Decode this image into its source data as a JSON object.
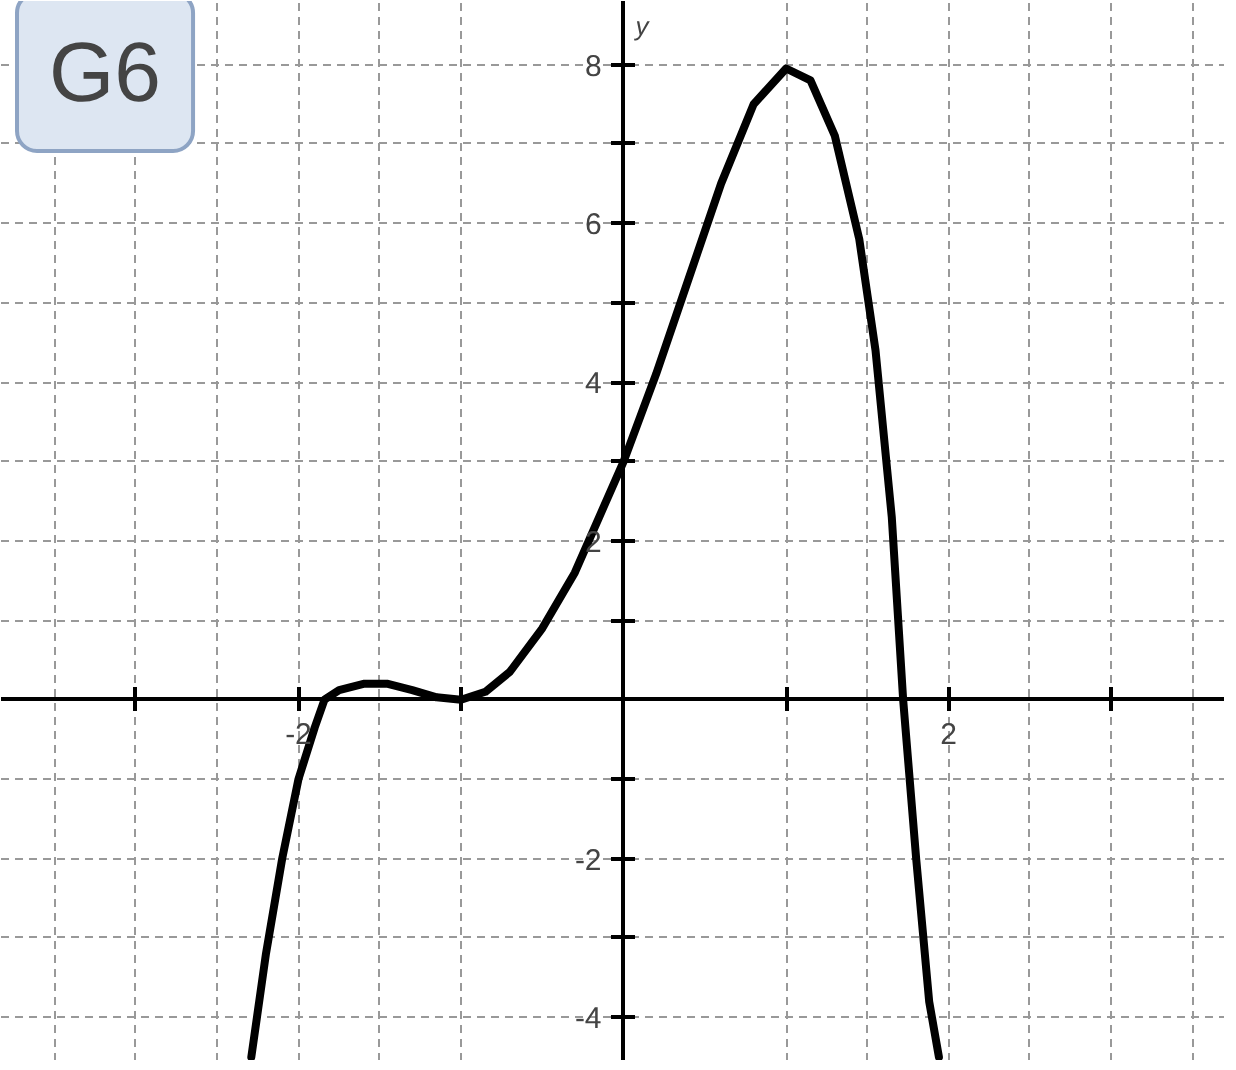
{
  "chart_data": {
    "type": "line",
    "ylabel": "y",
    "annotations": [
      "G6"
    ],
    "x": [
      -2.29,
      -2.2,
      -2.1,
      -2.0,
      -1.9,
      -1.84,
      -1.75,
      -1.6,
      -1.45,
      -1.3,
      -1.15,
      -1.0,
      -0.85,
      -0.7,
      -0.5,
      -0.3,
      -0.15,
      0,
      0.2,
      0.4,
      0.6,
      0.8,
      1.0,
      1.15,
      1.3,
      1.45,
      1.55,
      1.65,
      1.72,
      1.8,
      1.88,
      1.94
    ],
    "series": [
      {
        "color": "#000000",
        "values": [
          -4.5,
          -3.2,
          -2.0,
          -1.0,
          -0.35,
          0,
          0.12,
          0.2,
          0.2,
          0.12,
          0.03,
          0,
          0.1,
          0.35,
          0.9,
          1.6,
          2.3,
          3,
          4.1,
          5.3,
          6.5,
          7.5,
          7.95,
          7.8,
          7.1,
          5.8,
          4.4,
          2.3,
          0,
          -2.0,
          -3.8,
          -4.5
        ]
      }
    ],
    "xlim": [
      -3.83,
      3.7
    ],
    "ylim": [
      -4.55,
      8.8
    ],
    "xticks": [
      {
        "value": -3,
        "label": null
      },
      -2,
      {
        "value": -1,
        "label": null
      },
      {
        "value": 1,
        "label": null
      },
      2,
      {
        "value": 3,
        "label": null
      }
    ],
    "yticks": [
      -4,
      {
        "value": -3,
        "label": null
      },
      -2,
      {
        "value": -1,
        "label": null
      },
      {
        "value": 1,
        "label": null
      },
      2,
      {
        "value": 3,
        "label": null
      },
      4,
      {
        "value": 5,
        "label": null
      },
      6,
      {
        "value": 7,
        "label": null
      },
      8
    ],
    "grid": true,
    "line_style": "solid",
    "marker": "none"
  }
}
